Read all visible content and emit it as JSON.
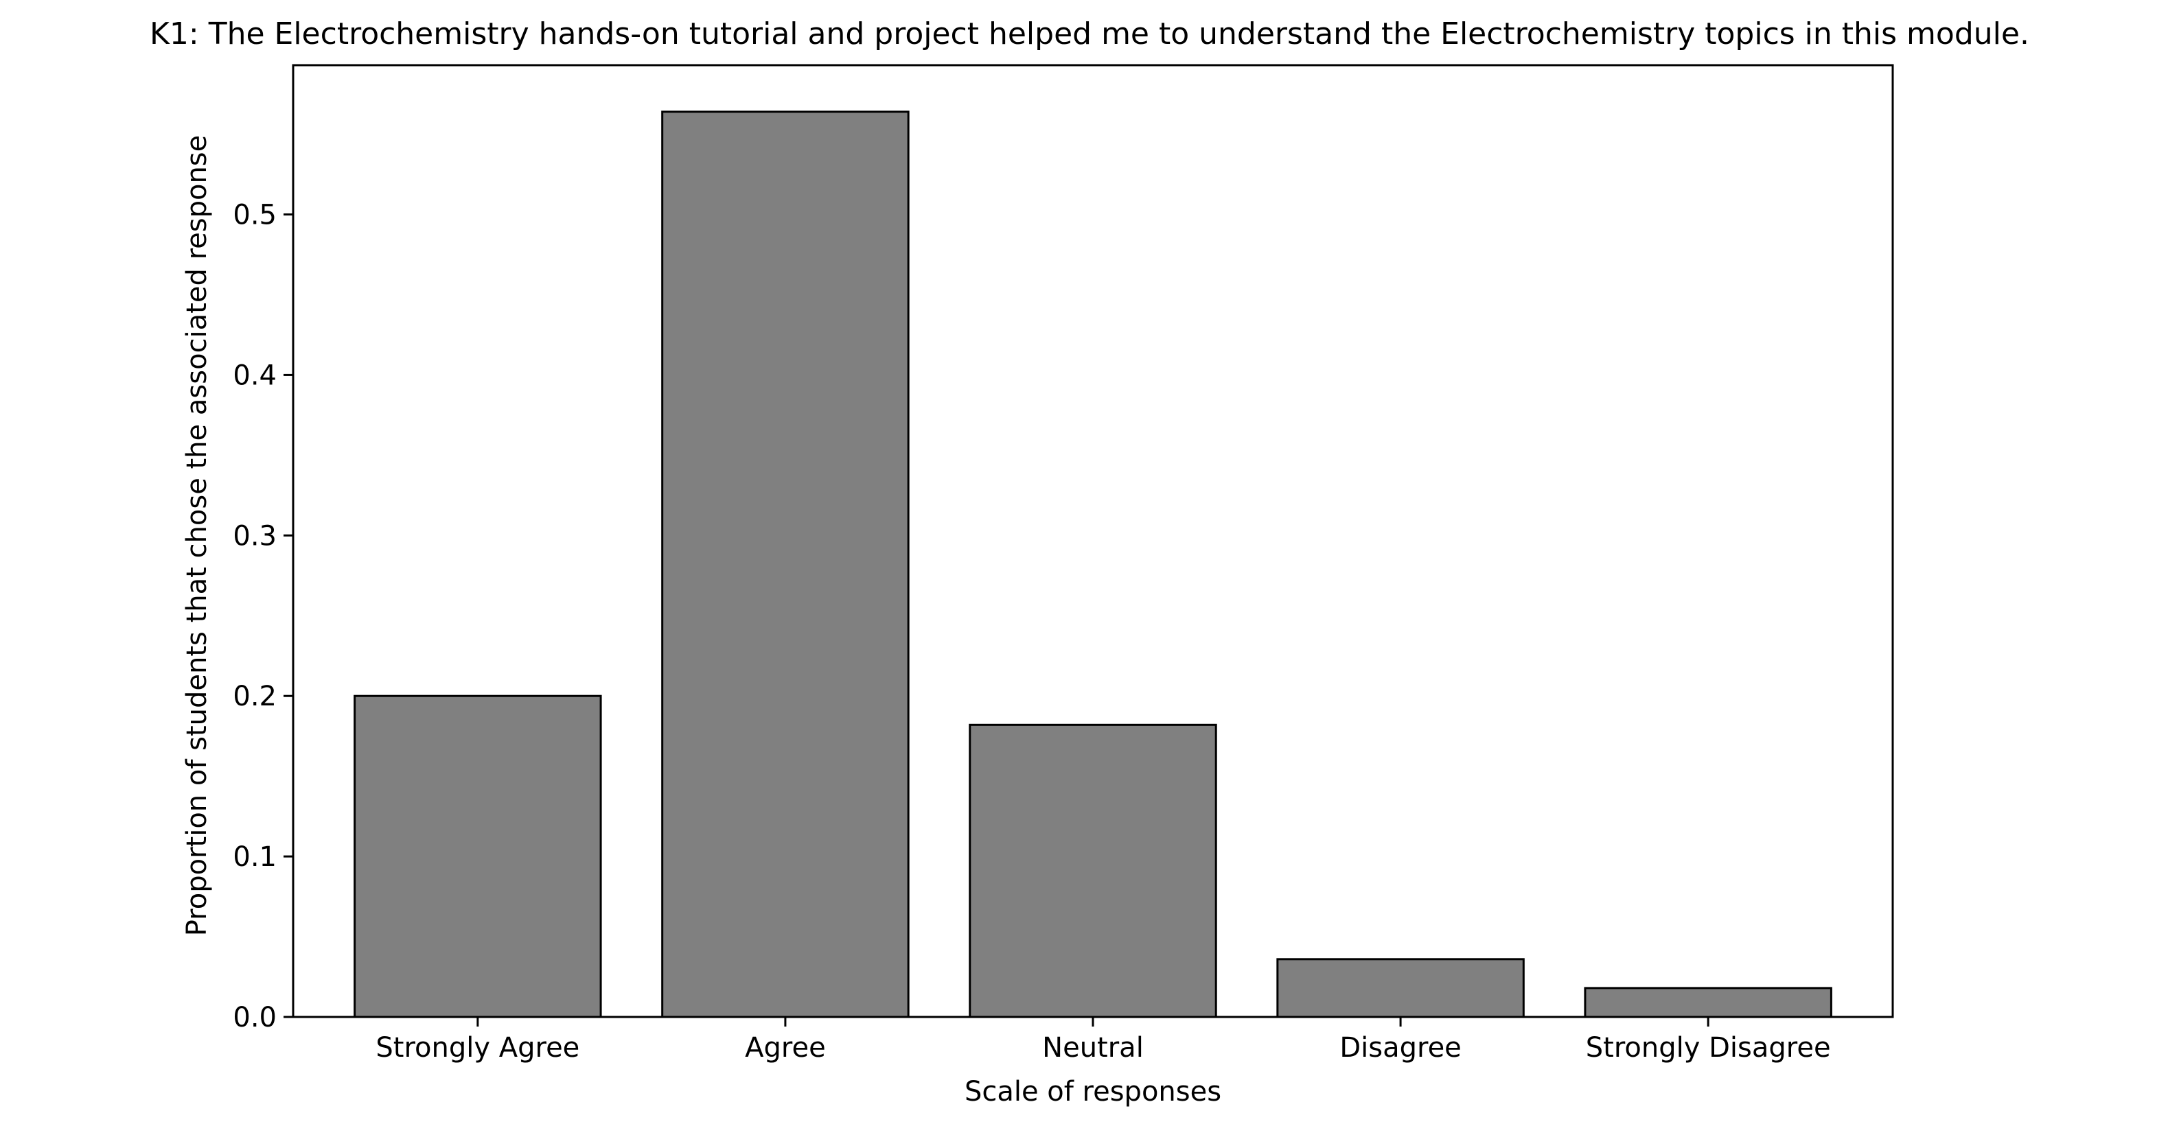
{
  "chart_data": {
    "type": "bar",
    "title": "K1: The Electrochemistry hands-on tutorial and project helped me to understand the Electrochemistry topics in this module.",
    "xlabel": "Scale of responses",
    "ylabel": "Proportion of students that chose the associated response",
    "categories": [
      "Strongly Agree",
      "Agree",
      "Neutral",
      "Disagree",
      "Strongly Disagree"
    ],
    "values": [
      0.2,
      0.564,
      0.182,
      0.036,
      0.018
    ],
    "ylim": [
      0,
      0.593
    ],
    "yticks": [
      0.0,
      0.1,
      0.2,
      0.3,
      0.4,
      0.5
    ],
    "ytick_labels": [
      "0.0",
      "0.1",
      "0.2",
      "0.3",
      "0.4",
      "0.5"
    ],
    "grid": false,
    "legend": "none",
    "bar_color": "#808080",
    "bar_edge_color": "#000000"
  }
}
